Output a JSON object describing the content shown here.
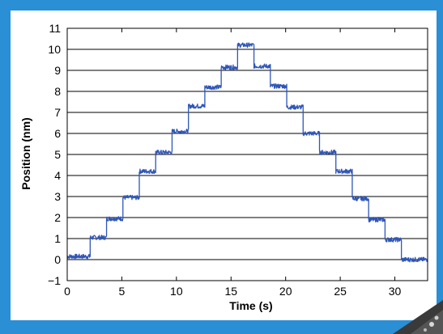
{
  "colors": {
    "frame": "#2a8fd4",
    "panel": "#ffffff",
    "trace": "#2f56b8",
    "axis": "#000000",
    "grid": "#000000"
  },
  "chart_data": {
    "type": "line",
    "title": "",
    "xlabel": "Time (s)",
    "ylabel": "Position (nm)",
    "xlim": [
      0,
      33
    ],
    "ylim": [
      -1,
      11
    ],
    "xticks": [
      0,
      5,
      10,
      15,
      20,
      25,
      30
    ],
    "yticks": [
      -1,
      0,
      1,
      2,
      3,
      4,
      5,
      6,
      7,
      8,
      9,
      10,
      11
    ],
    "grid": "horizontal",
    "legend": "none",
    "series": [
      {
        "steps": [
          {
            "t_start": 0.0,
            "t_end": 2.1,
            "position": 0.15
          },
          {
            "t_start": 2.1,
            "t_end": 3.6,
            "position": 1.05
          },
          {
            "t_start": 3.6,
            "t_end": 5.1,
            "position": 1.95
          },
          {
            "t_start": 5.1,
            "t_end": 6.6,
            "position": 2.95
          },
          {
            "t_start": 6.6,
            "t_end": 8.1,
            "position": 4.2
          },
          {
            "t_start": 8.1,
            "t_end": 9.6,
            "position": 5.1
          },
          {
            "t_start": 9.6,
            "t_end": 11.1,
            "position": 6.1
          },
          {
            "t_start": 11.1,
            "t_end": 12.6,
            "position": 7.3
          },
          {
            "t_start": 12.6,
            "t_end": 14.1,
            "position": 8.2
          },
          {
            "t_start": 14.1,
            "t_end": 15.6,
            "position": 9.15
          },
          {
            "t_start": 15.6,
            "t_end": 17.1,
            "position": 10.2
          },
          {
            "t_start": 17.1,
            "t_end": 18.6,
            "position": 9.2
          },
          {
            "t_start": 18.6,
            "t_end": 20.1,
            "position": 8.25
          },
          {
            "t_start": 20.1,
            "t_end": 21.6,
            "position": 7.25
          },
          {
            "t_start": 21.6,
            "t_end": 23.1,
            "position": 6.0
          },
          {
            "t_start": 23.1,
            "t_end": 24.6,
            "position": 5.1
          },
          {
            "t_start": 24.6,
            "t_end": 26.1,
            "position": 4.2
          },
          {
            "t_start": 26.1,
            "t_end": 27.6,
            "position": 2.9
          },
          {
            "t_start": 27.6,
            "t_end": 29.1,
            "position": 1.9
          },
          {
            "t_start": 29.1,
            "t_end": 30.6,
            "position": 0.95
          },
          {
            "t_start": 30.6,
            "t_end": 33.0,
            "position": 0.0
          }
        ]
      }
    ]
  }
}
